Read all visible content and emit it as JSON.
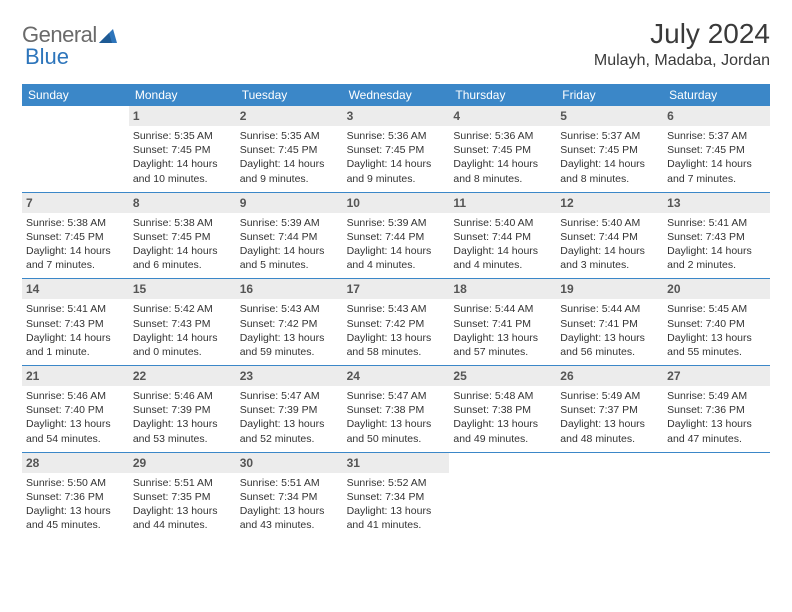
{
  "logo": {
    "text1": "General",
    "text2": "Blue",
    "tri_color": "#2d75bb",
    "text1_color": "#6a6a6a",
    "text2_color": "#2d75bb"
  },
  "title": "July 2024",
  "location": "Mulayh, Madaba, Jordan",
  "dayheaders": [
    "Sunday",
    "Monday",
    "Tuesday",
    "Wednesday",
    "Thursday",
    "Friday",
    "Saturday"
  ],
  "colors": {
    "header_bg": "#3b87c8",
    "header_text": "#ffffff",
    "daynum_bg": "#ececec",
    "daynum_text": "#555555",
    "border": "#3b87c8",
    "body_text": "#333333"
  },
  "weeks": [
    [
      {
        "n": "",
        "lines": []
      },
      {
        "n": "1",
        "lines": [
          "Sunrise: 5:35 AM",
          "Sunset: 7:45 PM",
          "Daylight: 14 hours",
          "and 10 minutes."
        ]
      },
      {
        "n": "2",
        "lines": [
          "Sunrise: 5:35 AM",
          "Sunset: 7:45 PM",
          "Daylight: 14 hours",
          "and 9 minutes."
        ]
      },
      {
        "n": "3",
        "lines": [
          "Sunrise: 5:36 AM",
          "Sunset: 7:45 PM",
          "Daylight: 14 hours",
          "and 9 minutes."
        ]
      },
      {
        "n": "4",
        "lines": [
          "Sunrise: 5:36 AM",
          "Sunset: 7:45 PM",
          "Daylight: 14 hours",
          "and 8 minutes."
        ]
      },
      {
        "n": "5",
        "lines": [
          "Sunrise: 5:37 AM",
          "Sunset: 7:45 PM",
          "Daylight: 14 hours",
          "and 8 minutes."
        ]
      },
      {
        "n": "6",
        "lines": [
          "Sunrise: 5:37 AM",
          "Sunset: 7:45 PM",
          "Daylight: 14 hours",
          "and 7 minutes."
        ]
      }
    ],
    [
      {
        "n": "7",
        "lines": [
          "Sunrise: 5:38 AM",
          "Sunset: 7:45 PM",
          "Daylight: 14 hours",
          "and 7 minutes."
        ]
      },
      {
        "n": "8",
        "lines": [
          "Sunrise: 5:38 AM",
          "Sunset: 7:45 PM",
          "Daylight: 14 hours",
          "and 6 minutes."
        ]
      },
      {
        "n": "9",
        "lines": [
          "Sunrise: 5:39 AM",
          "Sunset: 7:44 PM",
          "Daylight: 14 hours",
          "and 5 minutes."
        ]
      },
      {
        "n": "10",
        "lines": [
          "Sunrise: 5:39 AM",
          "Sunset: 7:44 PM",
          "Daylight: 14 hours",
          "and 4 minutes."
        ]
      },
      {
        "n": "11",
        "lines": [
          "Sunrise: 5:40 AM",
          "Sunset: 7:44 PM",
          "Daylight: 14 hours",
          "and 4 minutes."
        ]
      },
      {
        "n": "12",
        "lines": [
          "Sunrise: 5:40 AM",
          "Sunset: 7:44 PM",
          "Daylight: 14 hours",
          "and 3 minutes."
        ]
      },
      {
        "n": "13",
        "lines": [
          "Sunrise: 5:41 AM",
          "Sunset: 7:43 PM",
          "Daylight: 14 hours",
          "and 2 minutes."
        ]
      }
    ],
    [
      {
        "n": "14",
        "lines": [
          "Sunrise: 5:41 AM",
          "Sunset: 7:43 PM",
          "Daylight: 14 hours",
          "and 1 minute."
        ]
      },
      {
        "n": "15",
        "lines": [
          "Sunrise: 5:42 AM",
          "Sunset: 7:43 PM",
          "Daylight: 14 hours",
          "and 0 minutes."
        ]
      },
      {
        "n": "16",
        "lines": [
          "Sunrise: 5:43 AM",
          "Sunset: 7:42 PM",
          "Daylight: 13 hours",
          "and 59 minutes."
        ]
      },
      {
        "n": "17",
        "lines": [
          "Sunrise: 5:43 AM",
          "Sunset: 7:42 PM",
          "Daylight: 13 hours",
          "and 58 minutes."
        ]
      },
      {
        "n": "18",
        "lines": [
          "Sunrise: 5:44 AM",
          "Sunset: 7:41 PM",
          "Daylight: 13 hours",
          "and 57 minutes."
        ]
      },
      {
        "n": "19",
        "lines": [
          "Sunrise: 5:44 AM",
          "Sunset: 7:41 PM",
          "Daylight: 13 hours",
          "and 56 minutes."
        ]
      },
      {
        "n": "20",
        "lines": [
          "Sunrise: 5:45 AM",
          "Sunset: 7:40 PM",
          "Daylight: 13 hours",
          "and 55 minutes."
        ]
      }
    ],
    [
      {
        "n": "21",
        "lines": [
          "Sunrise: 5:46 AM",
          "Sunset: 7:40 PM",
          "Daylight: 13 hours",
          "and 54 minutes."
        ]
      },
      {
        "n": "22",
        "lines": [
          "Sunrise: 5:46 AM",
          "Sunset: 7:39 PM",
          "Daylight: 13 hours",
          "and 53 minutes."
        ]
      },
      {
        "n": "23",
        "lines": [
          "Sunrise: 5:47 AM",
          "Sunset: 7:39 PM",
          "Daylight: 13 hours",
          "and 52 minutes."
        ]
      },
      {
        "n": "24",
        "lines": [
          "Sunrise: 5:47 AM",
          "Sunset: 7:38 PM",
          "Daylight: 13 hours",
          "and 50 minutes."
        ]
      },
      {
        "n": "25",
        "lines": [
          "Sunrise: 5:48 AM",
          "Sunset: 7:38 PM",
          "Daylight: 13 hours",
          "and 49 minutes."
        ]
      },
      {
        "n": "26",
        "lines": [
          "Sunrise: 5:49 AM",
          "Sunset: 7:37 PM",
          "Daylight: 13 hours",
          "and 48 minutes."
        ]
      },
      {
        "n": "27",
        "lines": [
          "Sunrise: 5:49 AM",
          "Sunset: 7:36 PM",
          "Daylight: 13 hours",
          "and 47 minutes."
        ]
      }
    ],
    [
      {
        "n": "28",
        "lines": [
          "Sunrise: 5:50 AM",
          "Sunset: 7:36 PM",
          "Daylight: 13 hours",
          "and 45 minutes."
        ]
      },
      {
        "n": "29",
        "lines": [
          "Sunrise: 5:51 AM",
          "Sunset: 7:35 PM",
          "Daylight: 13 hours",
          "and 44 minutes."
        ]
      },
      {
        "n": "30",
        "lines": [
          "Sunrise: 5:51 AM",
          "Sunset: 7:34 PM",
          "Daylight: 13 hours",
          "and 43 minutes."
        ]
      },
      {
        "n": "31",
        "lines": [
          "Sunrise: 5:52 AM",
          "Sunset: 7:34 PM",
          "Daylight: 13 hours",
          "and 41 minutes."
        ]
      },
      {
        "n": "",
        "lines": []
      },
      {
        "n": "",
        "lines": []
      },
      {
        "n": "",
        "lines": []
      }
    ]
  ]
}
